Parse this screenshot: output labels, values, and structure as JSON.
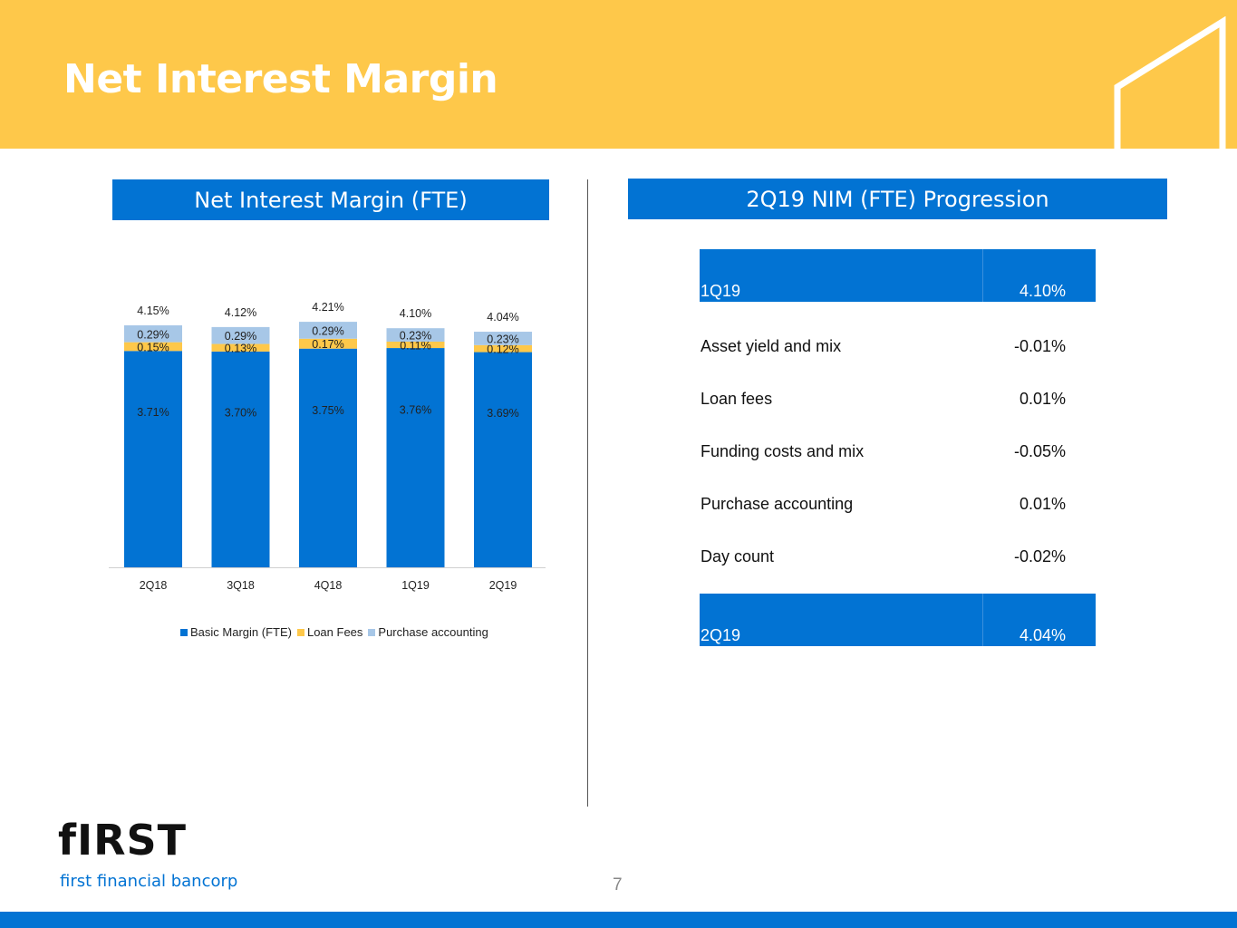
{
  "title": "Net Interest Margin",
  "left_panel_title": "Net Interest Margin (FTE)",
  "right_panel_title": "2Q19 NIM (FTE) Progression",
  "colors": {
    "basic": "#0273D3",
    "loan_fees": "#FEC84A",
    "purchase": "#A7C7E7",
    "header": "#FEC84A",
    "accent": "#0273D3"
  },
  "chart_data": {
    "type": "bar",
    "stacked": true,
    "categories": [
      "2Q18",
      "3Q18",
      "4Q18",
      "1Q19",
      "2Q19"
    ],
    "series": [
      {
        "name": "Basic Margin (FTE)",
        "values": [
          3.71,
          3.7,
          3.75,
          3.76,
          3.69
        ],
        "labels": [
          "3.71%",
          "3.70%",
          "3.75%",
          "3.76%",
          "3.69%"
        ]
      },
      {
        "name": "Loan Fees",
        "values": [
          0.15,
          0.13,
          0.17,
          0.11,
          0.12
        ],
        "labels": [
          "0.15%",
          "0.13%",
          "0.17%",
          "0.11%",
          "0.12%"
        ]
      },
      {
        "name": "Purchase accounting",
        "values": [
          0.29,
          0.29,
          0.29,
          0.23,
          0.23
        ],
        "labels": [
          "0.29%",
          "0.29%",
          "0.29%",
          "0.23%",
          "0.23%"
        ]
      }
    ],
    "totals": [
      4.15,
      4.12,
      4.21,
      4.1,
      4.04
    ],
    "total_labels": [
      "4.15%",
      "4.12%",
      "4.21%",
      "4.10%",
      "4.04%"
    ],
    "ylim": [
      0,
      4.6
    ],
    "legend_position": "bottom"
  },
  "progression": {
    "start": {
      "label": "1Q19",
      "value": "4.10%"
    },
    "items": [
      {
        "label": "Asset yield and mix",
        "value": "-0.01%"
      },
      {
        "label": "Loan fees",
        "value": "0.01%"
      },
      {
        "label": "Funding costs and mix",
        "value": "-0.05%"
      },
      {
        "label": "Purchase accounting",
        "value": "0.01%"
      },
      {
        "label": "Day count",
        "value": "-0.02%"
      }
    ],
    "end": {
      "label": "2Q19",
      "value": "4.04%"
    }
  },
  "logo": {
    "word": "fIRST",
    "subtitle": "first financial bancorp"
  },
  "page_number": "7"
}
